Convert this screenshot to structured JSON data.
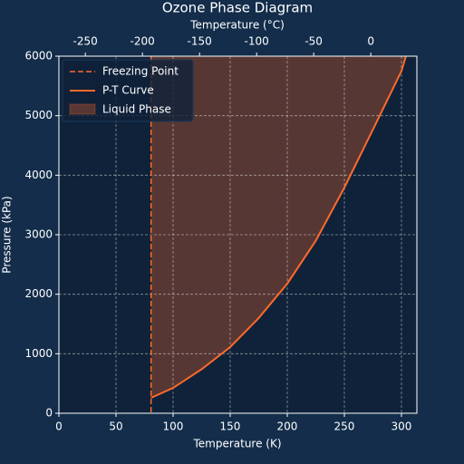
{
  "chart_data": {
    "type": "line",
    "title": "Ozone Phase Diagram",
    "xlabel": "Temperature (K)",
    "ylabel": "Pressure (kPa)",
    "top_xlabel": "Temperature (°C)",
    "xlim": [
      0,
      313.5
    ],
    "xticks": [
      0,
      50,
      100,
      150,
      200,
      250,
      300
    ],
    "top_xlim": [
      -273.15,
      40.35
    ],
    "top_xticks": [
      -250,
      -200,
      -150,
      -100,
      -50,
      0
    ],
    "ylim": [
      0,
      6000
    ],
    "yticks": [
      0,
      1000,
      2000,
      3000,
      4000,
      5000,
      6000
    ],
    "grid": true,
    "legend": "upper left",
    "freezing_point": {
      "name": "Freezing Point",
      "x": 80.7,
      "color": "#ff6a2a"
    },
    "series": [
      {
        "name": "P-T Curve",
        "color": "#ff6a2a",
        "x": [
          80.7,
          100,
          125,
          150,
          175,
          200,
          225,
          250,
          275,
          300,
          303.9
        ],
        "values": [
          259,
          426,
          740,
          1112,
          1600,
          2178,
          2900,
          3792,
          4767,
          5750,
          6000
        ]
      }
    ],
    "fill": {
      "name": "Liquid Phase",
      "color": "#ff6a2a",
      "alpha": 0.3
    }
  }
}
